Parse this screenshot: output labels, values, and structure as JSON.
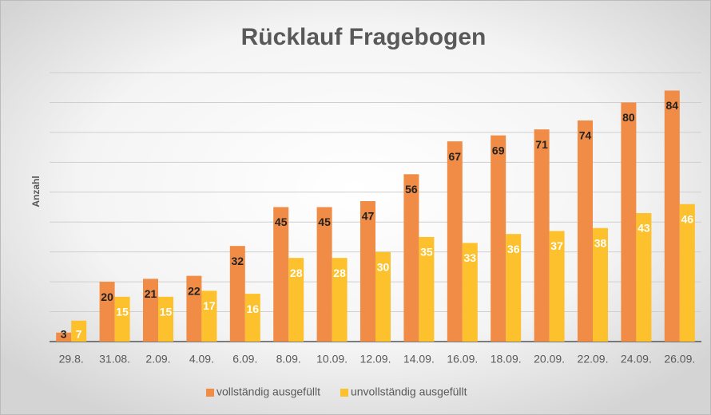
{
  "chart_data": {
    "type": "bar",
    "title": "Rücklauf Fragebogen",
    "y_label": "Anzahl",
    "categories": [
      "29.8.",
      "31.08.",
      "2.09.",
      "4.09.",
      "6.09.",
      "8.09.",
      "10.09.",
      "12.09.",
      "14.09.",
      "16.09.",
      "18.09.",
      "20.09.",
      "22.09.",
      "24.09.",
      "26.09."
    ],
    "series": [
      {
        "name": "vollständig ausgefüllt",
        "color": "#f08c45",
        "label_color": "#222222",
        "values": [
          3,
          20,
          21,
          22,
          32,
          45,
          45,
          47,
          56,
          67,
          69,
          71,
          74,
          80,
          84
        ]
      },
      {
        "name": "unvollständig ausgefüllt",
        "color": "#fcc12c",
        "label_color": "#ffffff",
        "values": [
          7,
          15,
          15,
          17,
          16,
          28,
          28,
          30,
          35,
          33,
          36,
          37,
          38,
          43,
          46
        ]
      }
    ],
    "ylim": [
      0,
      90
    ],
    "yticks": [
      0,
      10,
      20,
      30,
      40,
      50,
      60,
      70,
      80,
      90
    ],
    "grid": true,
    "legend": "bottom"
  }
}
